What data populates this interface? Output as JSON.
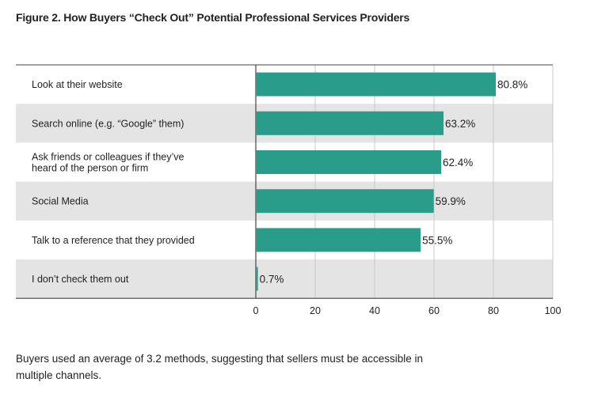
{
  "title": "Figure 2. How Buyers “Check Out” Potential Professional Services Providers",
  "caption": "Buyers used an average of 3.2 methods, suggesting that sellers must be accessible in multiple channels.",
  "colors": {
    "bar": "#2a9d8a",
    "band": "#e4e4e4",
    "grid": "#c8c8c8",
    "axis": "#444444"
  },
  "chart_data": {
    "type": "bar",
    "orientation": "horizontal",
    "title": "Figure 2. How Buyers “Check Out” Potential Professional Services Providers",
    "xlabel": "",
    "ylabel": "",
    "xlim": [
      0,
      100
    ],
    "ticks": [
      0,
      20,
      40,
      60,
      80,
      100
    ],
    "grid": true,
    "categories": [
      "Look at their website",
      "Search online (e.g. “Google” them)",
      "Ask friends or colleagues if they’ve heard of the person or firm",
      "Social Media",
      "Talk to a reference that they provided",
      "I don’t check them out"
    ],
    "category_lines": [
      [
        "Look at their website"
      ],
      [
        "Search online (e.g. “Google” them)"
      ],
      [
        "Ask friends or colleagues if they’ve",
        "heard of the person or firm"
      ],
      [
        "Social Media"
      ],
      [
        "Talk to a reference that they provided"
      ],
      [
        "I don’t check them out"
      ]
    ],
    "values": [
      80.8,
      63.2,
      62.4,
      59.9,
      55.5,
      0.7
    ],
    "value_labels": [
      "80.8%",
      "63.2%",
      "62.4%",
      "59.9%",
      "55.5%",
      "0.7%"
    ]
  }
}
